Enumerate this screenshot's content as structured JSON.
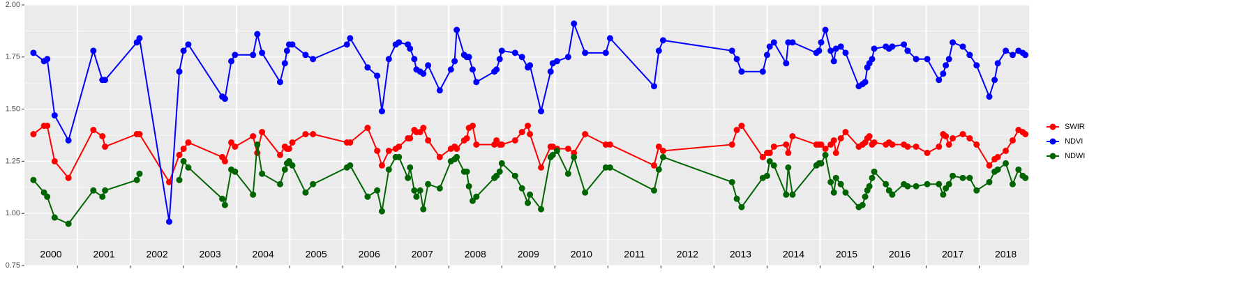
{
  "chart_data": {
    "type": "line",
    "x": [
      2000.17,
      2000.37,
      2000.43,
      2000.57,
      2000.83,
      2001.3,
      2001.47,
      2001.52,
      2002.12,
      2002.17,
      2002.73,
      2002.92,
      2003.0,
      2003.09,
      2003.73,
      2003.78,
      2003.9,
      2003.97,
      2004.31,
      2004.39,
      2004.48,
      2004.82,
      2004.91,
      2004.95,
      2004.99,
      2005.05,
      2005.3,
      2005.44,
      2006.08,
      2006.14,
      2006.47,
      2006.65,
      2006.74,
      2006.87,
      2007.0,
      2007.06,
      2007.23,
      2007.27,
      2007.35,
      2007.39,
      2007.46,
      2007.52,
      2007.61,
      2007.83,
      2008.04,
      2008.11,
      2008.15,
      2008.29,
      2008.34,
      2008.38,
      2008.45,
      2008.52,
      2008.86,
      2008.9,
      2008.96,
      2009.0,
      2009.25,
      2009.38,
      2009.49,
      2009.53,
      2009.74,
      2009.92,
      2009.96,
      2010.04,
      2010.25,
      2010.36,
      2010.57,
      2010.96,
      2011.04,
      2011.87,
      2011.96,
      2012.04,
      2013.34,
      2013.43,
      2013.52,
      2013.92,
      2014.0,
      2014.05,
      2014.13,
      2014.36,
      2014.4,
      2014.48,
      2014.93,
      2014.98,
      2015.02,
      2015.1,
      2015.2,
      2015.26,
      2015.3,
      2015.39,
      2015.48,
      2015.73,
      2015.8,
      2015.85,
      2015.89,
      2015.93,
      2015.98,
      2016.02,
      2016.24,
      2016.3,
      2016.36,
      2016.58,
      2016.65,
      2016.81,
      2017.02,
      2017.24,
      2017.32,
      2017.37,
      2017.43,
      2017.5,
      2017.69,
      2017.82,
      2017.95,
      2018.19,
      2018.29,
      2018.35,
      2018.5,
      2018.63,
      2018.74,
      2018.82,
      2018.87
    ],
    "series": [
      {
        "name": "SWIR",
        "color": "#ff0000",
        "values": [
          1.38,
          1.42,
          1.42,
          1.25,
          1.17,
          1.4,
          1.37,
          1.32,
          1.38,
          1.38,
          1.15,
          1.28,
          1.31,
          1.34,
          1.27,
          1.25,
          1.34,
          1.32,
          1.37,
          1.29,
          1.39,
          1.28,
          1.32,
          1.31,
          1.31,
          1.34,
          1.38,
          1.38,
          1.34,
          1.34,
          1.41,
          1.3,
          1.23,
          1.3,
          1.31,
          1.32,
          1.36,
          1.36,
          1.4,
          1.39,
          1.39,
          1.41,
          1.35,
          1.27,
          1.31,
          1.32,
          1.31,
          1.35,
          1.36,
          1.41,
          1.42,
          1.33,
          1.33,
          1.35,
          1.33,
          1.33,
          1.35,
          1.39,
          1.42,
          1.38,
          1.22,
          1.32,
          1.32,
          1.31,
          1.31,
          1.29,
          1.38,
          1.33,
          1.33,
          1.23,
          1.32,
          1.3,
          1.33,
          1.4,
          1.42,
          1.27,
          1.29,
          1.29,
          1.32,
          1.33,
          1.29,
          1.37,
          1.33,
          1.33,
          1.33,
          1.31,
          1.33,
          1.35,
          1.29,
          1.36,
          1.39,
          1.32,
          1.33,
          1.34,
          1.36,
          1.37,
          1.33,
          1.34,
          1.33,
          1.34,
          1.33,
          1.33,
          1.32,
          1.32,
          1.29,
          1.32,
          1.38,
          1.37,
          1.33,
          1.36,
          1.38,
          1.36,
          1.33,
          1.23,
          1.26,
          1.27,
          1.3,
          1.35,
          1.4,
          1.39,
          1.38
        ]
      },
      {
        "name": "NDVI",
        "color": "#0000ff",
        "values": [
          1.77,
          1.73,
          1.74,
          1.47,
          1.35,
          1.78,
          1.64,
          1.64,
          1.82,
          1.84,
          0.96,
          1.68,
          1.78,
          1.81,
          1.56,
          1.55,
          1.73,
          1.76,
          1.76,
          1.86,
          1.77,
          1.63,
          1.72,
          1.78,
          1.81,
          1.81,
          1.76,
          1.74,
          1.81,
          1.84,
          1.7,
          1.66,
          1.49,
          1.74,
          1.81,
          1.82,
          1.81,
          1.79,
          1.74,
          1.69,
          1.68,
          1.67,
          1.71,
          1.59,
          1.69,
          1.73,
          1.88,
          1.76,
          1.75,
          1.75,
          1.69,
          1.63,
          1.68,
          1.69,
          1.74,
          1.78,
          1.77,
          1.75,
          1.7,
          1.71,
          1.49,
          1.68,
          1.72,
          1.73,
          1.75,
          1.91,
          1.77,
          1.77,
          1.84,
          1.61,
          1.78,
          1.83,
          1.78,
          1.74,
          1.68,
          1.68,
          1.76,
          1.8,
          1.82,
          1.72,
          1.82,
          1.82,
          1.77,
          1.78,
          1.82,
          1.88,
          1.78,
          1.73,
          1.79,
          1.8,
          1.77,
          1.61,
          1.62,
          1.63,
          1.7,
          1.72,
          1.74,
          1.79,
          1.8,
          1.79,
          1.8,
          1.81,
          1.78,
          1.74,
          1.74,
          1.64,
          1.67,
          1.71,
          1.74,
          1.82,
          1.8,
          1.76,
          1.71,
          1.56,
          1.64,
          1.72,
          1.78,
          1.76,
          1.78,
          1.77,
          1.76
        ]
      },
      {
        "name": "NDWI",
        "color": "#006400",
        "values": [
          1.16,
          1.1,
          1.08,
          0.98,
          0.95,
          1.11,
          1.08,
          1.11,
          1.16,
          1.19,
          null,
          1.16,
          1.25,
          1.22,
          1.07,
          1.04,
          1.21,
          1.2,
          1.09,
          1.33,
          1.19,
          1.14,
          1.21,
          1.24,
          1.25,
          1.23,
          1.1,
          1.14,
          1.22,
          1.23,
          1.08,
          1.11,
          1.01,
          1.21,
          1.27,
          1.27,
          1.17,
          1.22,
          1.11,
          1.08,
          1.11,
          1.02,
          1.14,
          1.12,
          1.25,
          1.26,
          1.27,
          1.2,
          1.2,
          1.13,
          1.06,
          1.08,
          1.17,
          1.18,
          1.2,
          1.24,
          1.18,
          1.12,
          1.05,
          1.09,
          1.02,
          1.27,
          1.28,
          1.3,
          1.19,
          1.27,
          1.1,
          1.22,
          1.22,
          1.11,
          1.21,
          1.27,
          1.15,
          1.07,
          1.03,
          1.17,
          1.18,
          1.25,
          1.23,
          1.09,
          1.22,
          1.09,
          1.23,
          1.24,
          1.24,
          1.28,
          1.15,
          1.1,
          1.17,
          1.14,
          1.1,
          1.03,
          1.04,
          1.08,
          1.11,
          1.13,
          1.17,
          1.2,
          1.14,
          1.11,
          1.09,
          1.14,
          1.13,
          1.13,
          1.14,
          1.14,
          1.09,
          1.12,
          1.14,
          1.18,
          1.17,
          1.17,
          1.11,
          1.15,
          1.2,
          1.21,
          1.24,
          1.14,
          1.21,
          1.18,
          1.17
        ]
      }
    ],
    "year_labels": [
      "2000",
      "2001",
      "2002",
      "2003",
      "2004",
      "2005",
      "2006",
      "2007",
      "2008",
      "2009",
      "2010",
      "2011",
      "2012",
      "2013",
      "2014",
      "2015",
      "2016",
      "2017",
      "2018"
    ],
    "xlim": [
      2000,
      2018.94
    ],
    "xticks": [
      2001,
      2002,
      2003,
      2004,
      2005,
      2006,
      2007,
      2008,
      2009,
      2010,
      2011,
      2012,
      2013,
      2014,
      2015,
      2016,
      2017,
      2018
    ],
    "ylim": [
      0.75,
      2.0
    ],
    "yticks": [
      0.75,
      {
        "value": 1.0,
        "label": "1.00"
      },
      1.25,
      {
        "value": 1.5,
        "label": "1.50"
      },
      1.75,
      {
        "value": 2.0,
        "label": "2.00"
      }
    ],
    "grid": true,
    "legend": "right"
  }
}
